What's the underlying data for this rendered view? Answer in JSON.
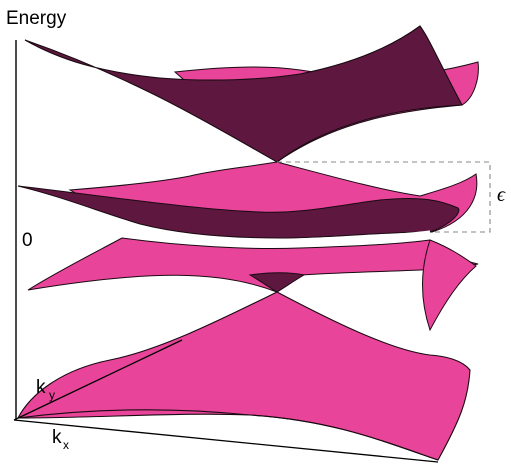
{
  "axes": {
    "energy_label": "Energy",
    "zero_label": "0",
    "kx_label": "k",
    "kx_sub": "x",
    "ky_label": "k",
    "ky_sub": "y"
  },
  "annotation": {
    "gap_symbol": "ϵ"
  },
  "colors": {
    "surface_top": "#5e1840",
    "surface_bottom": "#e8449a",
    "edge": "#1a0a12",
    "highlight": "#ffffff",
    "dashed_bracket": "#888888"
  },
  "bands": [
    {
      "name": "upper-cone-outer",
      "colors": [
        "surface_top",
        "surface_bottom"
      ]
    },
    {
      "name": "middle-split-band",
      "colors": [
        "surface_top",
        "surface_bottom"
      ]
    },
    {
      "name": "lower-cone",
      "colors": [
        "surface_bottom"
      ]
    }
  ]
}
